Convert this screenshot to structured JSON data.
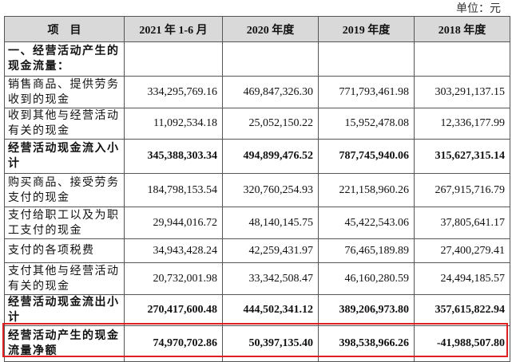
{
  "header": {
    "unit": "单位：元"
  },
  "table": {
    "columns": [
      "项　目",
      "2021 年 1-6 月",
      "2020 年度",
      "2019 年度",
      "2018 年度"
    ],
    "rows": [
      [
        "一、经营活动产生的现金流量："
      ],
      [
        "销售商品、提供劳务收到的现金",
        "334,295,769.16",
        "469,847,326.30",
        "771,793,461.98",
        "303,291,137.15"
      ],
      [
        "收到其他与经营活动有关的现金",
        "11,092,534.18",
        "25,052,150.22",
        "15,952,478.08",
        "12,336,177.99"
      ],
      [
        "经营活动现金流入小计",
        "345,388,303.34",
        "494,899,476.52",
        "787,745,940.06",
        "315,627,315.14"
      ],
      [
        "购买商品、接受劳务支付的现金",
        "184,798,153.54",
        "320,760,254.93",
        "221,158,960.26",
        "267,915,716.79"
      ],
      [
        "支付给职工以及为职工支付的现金",
        "29,944,016.72",
        "48,140,145.75",
        "45,422,543.06",
        "37,805,641.17"
      ],
      [
        "支付的各项税费",
        "34,943,428.24",
        "42,259,431.97",
        "76,465,189.89",
        "27,400,279.41"
      ],
      [
        "支付其他与经营活动有关的现金",
        "20,732,001.98",
        "33,342,508.47",
        "46,160,280.59",
        "24,494,185.57"
      ],
      [
        "经营活动现金流出小计",
        "270,417,600.48",
        "444,502,341.12",
        "389,206,973.80",
        "357,615,822.94"
      ],
      [
        "经营活动产生的现金流量净额",
        "74,970,702.86",
        "50,397,135.40",
        "398,538,966.26",
        "-41,988,507.80"
      ]
    ]
  }
}
